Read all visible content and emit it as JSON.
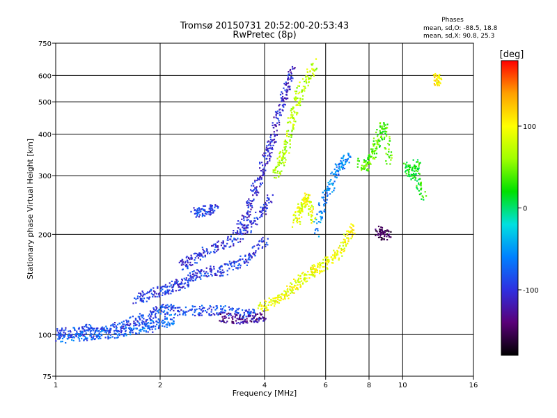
{
  "chart_data": {
    "type": "scatter",
    "title": "Tromsø 20150731 20:52:00-20:53:43",
    "subtitle": "RwPretec (8p)",
    "xlabel": "Frequency [MHz]",
    "ylabel": "Stationary phase Virtual Height [km]",
    "x_scale": "log",
    "y_scale": "log",
    "xlim": [
      1,
      16
    ],
    "ylim": [
      75,
      750
    ],
    "x_ticks": [
      1,
      2,
      4,
      6,
      8,
      10,
      16
    ],
    "x_tick_labels": [
      "1",
      "2",
      "4",
      "6",
      "8",
      "10",
      "16"
    ],
    "y_ticks": [
      75,
      100,
      200,
      300,
      400,
      500,
      600,
      750
    ],
    "y_tick_labels": [
      "75",
      "100",
      "200",
      "300",
      "400",
      "500",
      "600",
      "750"
    ],
    "grid": true,
    "stats": {
      "heading": "Phases",
      "line1": "mean, sd,O: -88.5, 18.8",
      "line2": "mean, sd,X:  90.8, 25.3"
    },
    "colorbar": {
      "unit": "[deg]",
      "range": [
        -180,
        180
      ],
      "ticks": [
        100,
        0,
        -100
      ],
      "tick_labels": [
        "100",
        "0",
        "-100"
      ],
      "colors": [
        "#000000",
        "#5a0078",
        "#2f2fe0",
        "#0080ff",
        "#00e0e0",
        "#00e000",
        "#a0ff00",
        "#ffff00",
        "#ffa000",
        "#ff0000"
      ]
    },
    "series": [
      {
        "points": [
          [
            1.0,
            100
          ],
          [
            1.05,
            102
          ],
          [
            1.12,
            101
          ],
          [
            1.2,
            103
          ],
          [
            1.25,
            104
          ],
          [
            1.3,
            101
          ],
          [
            1.4,
            103
          ],
          [
            1.5,
            105
          ],
          [
            1.6,
            107
          ],
          [
            1.7,
            110
          ],
          [
            1.8,
            112
          ],
          [
            1.9,
            115
          ],
          [
            2.0,
            118
          ],
          [
            2.1,
            120
          ],
          [
            2.2,
            118
          ],
          [
            2.4,
            118
          ],
          [
            2.6,
            118
          ],
          [
            2.8,
            118
          ],
          [
            3.0,
            118
          ],
          [
            3.2,
            118
          ],
          [
            3.4,
            115
          ],
          [
            3.6,
            115
          ],
          [
            3.8,
            115
          ]
        ],
        "phase": -90
      },
      {
        "points": [
          [
            1.0,
            97
          ],
          [
            1.1,
            98
          ],
          [
            1.2,
            99
          ],
          [
            1.3,
            100
          ],
          [
            1.4,
            100
          ],
          [
            1.5,
            101
          ],
          [
            1.6,
            102
          ],
          [
            1.7,
            103
          ],
          [
            1.8,
            104
          ],
          [
            1.9,
            106
          ],
          [
            2.0,
            108
          ],
          [
            2.1,
            110
          ],
          [
            2.2,
            112
          ]
        ],
        "phase": -75
      },
      {
        "points": [
          [
            1.7,
            128
          ],
          [
            1.8,
            130
          ],
          [
            1.9,
            133
          ],
          [
            2.0,
            135
          ],
          [
            2.1,
            137
          ],
          [
            2.2,
            140
          ],
          [
            2.3,
            142
          ],
          [
            2.4,
            145
          ],
          [
            2.5,
            150
          ],
          [
            2.6,
            152
          ],
          [
            2.8,
            155
          ],
          [
            3.0,
            155
          ],
          [
            3.2,
            160
          ],
          [
            3.4,
            165
          ],
          [
            3.6,
            170
          ],
          [
            3.8,
            180
          ],
          [
            4.0,
            190
          ]
        ],
        "phase": -95
      },
      {
        "points": [
          [
            2.3,
            162
          ],
          [
            2.4,
            165
          ],
          [
            2.5,
            168
          ],
          [
            2.6,
            172
          ],
          [
            2.8,
            180
          ],
          [
            3.0,
            185
          ],
          [
            3.2,
            190
          ],
          [
            3.4,
            200
          ],
          [
            3.6,
            210
          ],
          [
            3.8,
            225
          ],
          [
            4.0,
            240
          ],
          [
            4.2,
            260
          ]
        ],
        "phase": -100
      },
      {
        "points": [
          [
            3.3,
            200
          ],
          [
            3.5,
            220
          ],
          [
            3.6,
            240
          ],
          [
            3.7,
            260
          ],
          [
            3.8,
            280
          ],
          [
            3.9,
            300
          ],
          [
            4.0,
            330
          ],
          [
            4.1,
            360
          ],
          [
            4.2,
            380
          ],
          [
            4.3,
            420
          ],
          [
            4.4,
            460
          ],
          [
            4.5,
            500
          ],
          [
            4.6,
            540
          ],
          [
            4.7,
            580
          ],
          [
            4.8,
            620
          ]
        ],
        "phase": -105
      },
      {
        "points": [
          [
            2.5,
            232
          ],
          [
            2.6,
            234
          ],
          [
            2.7,
            236
          ],
          [
            2.8,
            238
          ],
          [
            2.9,
            236
          ]
        ],
        "phase": -90
      },
      {
        "points": [
          [
            3.9,
            120
          ],
          [
            4.1,
            123
          ],
          [
            4.3,
            126
          ],
          [
            4.5,
            130
          ],
          [
            4.7,
            135
          ],
          [
            4.9,
            140
          ],
          [
            5.1,
            145
          ],
          [
            5.3,
            150
          ],
          [
            5.5,
            155
          ],
          [
            5.7,
            158
          ],
          [
            5.9,
            162
          ],
          [
            6.2,
            168
          ],
          [
            6.5,
            175
          ],
          [
            6.8,
            185
          ],
          [
            7.0,
            200
          ],
          [
            7.2,
            210
          ]
        ],
        "phase": 95
      },
      {
        "points": [
          [
            4.9,
            215
          ],
          [
            5.0,
            230
          ],
          [
            5.1,
            240
          ],
          [
            5.2,
            250
          ],
          [
            5.3,
            260
          ],
          [
            5.4,
            240
          ],
          [
            5.5,
            220
          ]
        ],
        "phase": 90
      },
      {
        "points": [
          [
            4.3,
            300
          ],
          [
            4.4,
            320
          ],
          [
            4.5,
            340
          ],
          [
            4.6,
            360
          ],
          [
            4.7,
            400
          ],
          [
            4.8,
            440
          ],
          [
            4.9,
            480
          ],
          [
            5.0,
            520
          ],
          [
            5.2,
            560
          ],
          [
            5.4,
            600
          ],
          [
            5.6,
            650
          ]
        ],
        "phase": 70
      },
      {
        "points": [
          [
            5.6,
            200
          ],
          [
            5.8,
            230
          ],
          [
            6.0,
            260
          ],
          [
            6.2,
            280
          ],
          [
            6.4,
            300
          ],
          [
            6.6,
            320
          ],
          [
            6.8,
            330
          ],
          [
            7.0,
            340
          ]
        ],
        "phase": -60
      },
      {
        "points": [
          [
            7.5,
            330
          ],
          [
            7.8,
            320
          ],
          [
            8.0,
            330
          ],
          [
            8.2,
            350
          ],
          [
            8.4,
            370
          ],
          [
            8.6,
            400
          ],
          [
            8.8,
            420
          ],
          [
            9.0,
            380
          ],
          [
            9.2,
            330
          ]
        ],
        "phase": 40
      },
      {
        "points": [
          [
            8.5,
            205
          ],
          [
            8.7,
            200
          ],
          [
            8.9,
            198
          ],
          [
            9.1,
            200
          ]
        ],
        "phase": -150
      },
      {
        "points": [
          [
            10.2,
            320
          ],
          [
            10.5,
            310
          ],
          [
            10.8,
            300
          ],
          [
            11.0,
            330
          ],
          [
            11.2,
            280
          ],
          [
            11.5,
            260
          ]
        ],
        "phase": 20
      },
      {
        "points": [
          [
            12.5,
            590
          ],
          [
            12.6,
            580
          ],
          [
            12.7,
            570
          ]
        ],
        "phase": 110
      },
      {
        "points": [
          [
            3.0,
            112
          ],
          [
            3.2,
            112
          ],
          [
            3.4,
            111
          ],
          [
            3.6,
            112
          ],
          [
            3.8,
            113
          ],
          [
            4.0,
            114
          ]
        ],
        "phase": -130
      }
    ]
  }
}
